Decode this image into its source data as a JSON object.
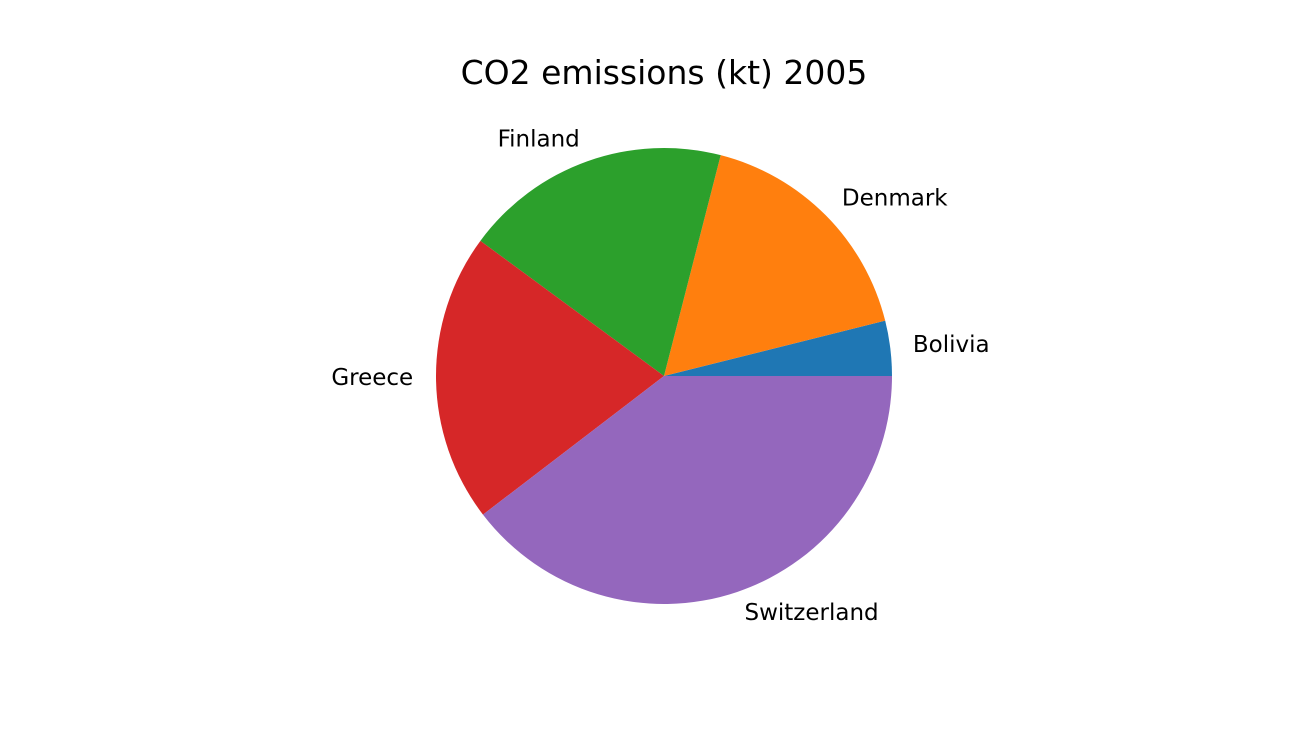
{
  "chart_data": {
    "type": "pie",
    "title": "CO2 emissions (kt) 2005",
    "categories": [
      "Bolivia",
      "Denmark",
      "Finland",
      "Greece",
      "Switzerland"
    ],
    "values": [
      3.9,
      17.1,
      18.9,
      20.5,
      39.6
    ],
    "colors": [
      "#1f77b4",
      "#ff7f0e",
      "#2ca02c",
      "#d62728",
      "#9467bd"
    ],
    "start_angle": 0,
    "direction": "counterclockwise",
    "legend": "none"
  }
}
